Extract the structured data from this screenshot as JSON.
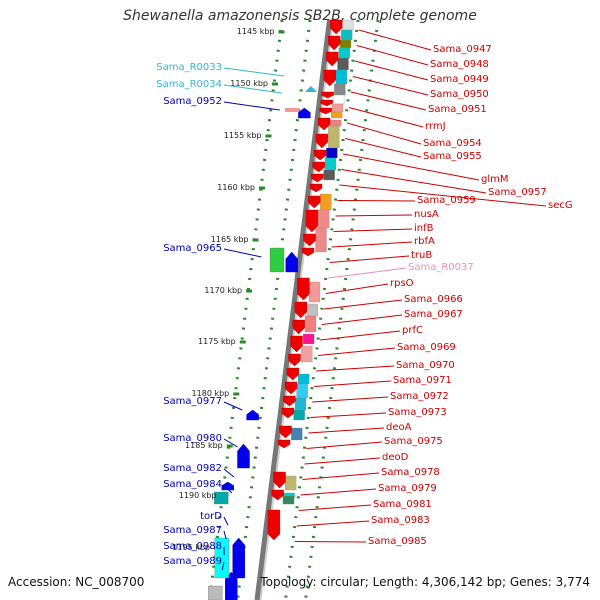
{
  "title": "Shewanella amazonensis SB2B, complete genome",
  "accession": "Accession: NC_008700",
  "topology": "Topology: circular; Length: 4,306,142 bp; Genes: 3,774",
  "ticks": [
    {
      "label": "1145 kbp"
    },
    {
      "label": "1150 kbp"
    },
    {
      "label": "1155 kbp"
    },
    {
      "label": "1160 kbp"
    },
    {
      "label": "1165 kbp"
    },
    {
      "label": "1170 kbp"
    },
    {
      "label": "1175 kbp"
    },
    {
      "label": "1180 kbp"
    },
    {
      "label": "1185 kbp"
    },
    {
      "label": "1190 kbp"
    },
    {
      "label": "1195 kbp"
    }
  ],
  "left_labels": [
    {
      "text": "Sama_R0033",
      "color": "#33b5d6"
    },
    {
      "text": "Sama_R0034",
      "color": "#33b5d6"
    },
    {
      "text": "Sama_0952",
      "color": "#0000b0"
    },
    {
      "text": "Sama_0965",
      "color": "#0000b0"
    },
    {
      "text": "Sama_0977",
      "color": "#0000b0"
    },
    {
      "text": "Sama_0980",
      "color": "#0000b0"
    },
    {
      "text": "Sama_0982",
      "color": "#0000b0"
    },
    {
      "text": "Sama_0984",
      "color": "#0000b0"
    },
    {
      "text": "torD",
      "color": "#0000b0"
    },
    {
      "text": "Sama_0987",
      "color": "#0000b0"
    },
    {
      "text": "Sama_0988",
      "color": "#0000b0"
    },
    {
      "text": "Sama_0989",
      "color": "#0000b0"
    }
  ],
  "right_labels": [
    {
      "text": "Sama_0947",
      "color": "#cc0000"
    },
    {
      "text": "Sama_0948",
      "color": "#cc0000"
    },
    {
      "text": "Sama_0949",
      "color": "#cc0000"
    },
    {
      "text": "Sama_0950",
      "color": "#cc0000"
    },
    {
      "text": "Sama_0951",
      "color": "#cc0000"
    },
    {
      "text": "rrmJ",
      "color": "#cc0000"
    },
    {
      "text": "Sama_0954",
      "color": "#cc0000"
    },
    {
      "text": "Sama_0955",
      "color": "#cc0000"
    },
    {
      "text": "glmM",
      "color": "#cc0000"
    },
    {
      "text": "Sama_0957",
      "color": "#cc0000"
    },
    {
      "text": "secG",
      "color": "#cc0000"
    },
    {
      "text": "Sama_0959",
      "color": "#cc0000"
    },
    {
      "text": "nusA",
      "color": "#cc0000"
    },
    {
      "text": "infB",
      "color": "#cc0000"
    },
    {
      "text": "rbfA",
      "color": "#cc0000"
    },
    {
      "text": "truB",
      "color": "#cc0000"
    },
    {
      "text": "Sama_R0037",
      "color": "#e88fb4"
    },
    {
      "text": "rpsO",
      "color": "#cc0000"
    },
    {
      "text": "Sama_0966",
      "color": "#cc0000"
    },
    {
      "text": "Sama_0967",
      "color": "#cc0000"
    },
    {
      "text": "prfC",
      "color": "#cc0000"
    },
    {
      "text": "Sama_0969",
      "color": "#cc0000"
    },
    {
      "text": "Sama_0970",
      "color": "#cc0000"
    },
    {
      "text": "Sama_0971",
      "color": "#cc0000"
    },
    {
      "text": "Sama_0972",
      "color": "#cc0000"
    },
    {
      "text": "Sama_0973",
      "color": "#cc0000"
    },
    {
      "text": "deoA",
      "color": "#cc0000"
    },
    {
      "text": "Sama_0975",
      "color": "#cc0000"
    },
    {
      "text": "deoD",
      "color": "#cc0000"
    },
    {
      "text": "Sama_0978",
      "color": "#cc0000"
    },
    {
      "text": "Sama_0979",
      "color": "#cc0000"
    },
    {
      "text": "Sama_0981",
      "color": "#cc0000"
    },
    {
      "text": "Sama_0983",
      "color": "#cc0000"
    },
    {
      "text": "Sama_0985",
      "color": "#cc0000"
    }
  ]
}
